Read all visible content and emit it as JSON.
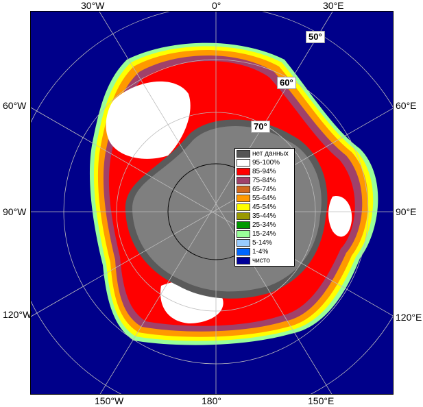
{
  "map": {
    "edge_labels": {
      "top": [
        "30°W",
        "0°",
        "30°E"
      ],
      "left": [
        "60°W",
        "90°W",
        "120°W"
      ],
      "right": [
        "60°E",
        "90°E",
        "120°E"
      ],
      "bottom": [
        "150°W",
        "180°",
        "150°E"
      ]
    },
    "lat_labels": [
      "50°",
      "60°",
      "70°"
    ],
    "colors": {
      "ocean": "#00008a",
      "land": "#7f7f7f",
      "ice_shelf": "#5a5a5a"
    }
  },
  "legend": {
    "items": [
      {
        "label": "нет данных",
        "color": "#555555"
      },
      {
        "label": "95-100%",
        "color": "#ffffff"
      },
      {
        "label": "85-94%",
        "color": "#ff0000"
      },
      {
        "label": "75-84%",
        "color": "#a0416a"
      },
      {
        "label": "65-74%",
        "color": "#d2691e"
      },
      {
        "label": "55-64%",
        "color": "#ff9900"
      },
      {
        "label": "45-54%",
        "color": "#ffff00"
      },
      {
        "label": "35-44%",
        "color": "#999900"
      },
      {
        "label": "25-34%",
        "color": "#009900"
      },
      {
        "label": "15-24%",
        "color": "#99ff99"
      },
      {
        "label": "5-14%",
        "color": "#99ccff"
      },
      {
        "label": "1-4%",
        "color": "#0066ff"
      },
      {
        "label": "чисто",
        "color": "#000099"
      }
    ]
  }
}
